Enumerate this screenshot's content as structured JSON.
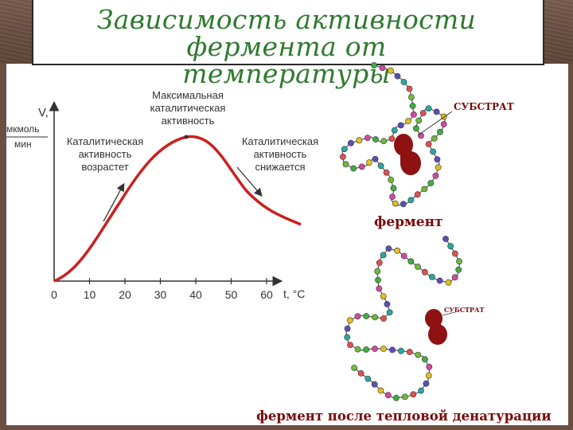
{
  "slide": {
    "title_line1": "Зависимость активности фермента от",
    "title_line2": "температуры"
  },
  "graph": {
    "y_axis_letter": "V,",
    "y_unit_numerator": "мкмоль",
    "y_unit_denominator": "мин",
    "x_axis_label": "t, °C",
    "x_ticks": [
      "0",
      "10",
      "20",
      "30",
      "40",
      "50",
      "60"
    ],
    "annotation_rise": [
      "Каталитическая",
      "активность",
      "возрастет"
    ],
    "annotation_peak": [
      "Максимальная",
      "каталитическая",
      "активность"
    ],
    "annotation_fall": [
      "Каталитическая",
      "активность",
      "снижается"
    ],
    "curve_color": "#cc1f1f"
  },
  "molecules": {
    "substrate_label_top": "СУБСТРАТ",
    "substrate_label_bottom": "СУБСТРАТ",
    "enzyme_label": "фермент",
    "denatured_label": "фермент после тепловой денатурации",
    "bead_colors": [
      "#3fae3f",
      "#d24a9e",
      "#e0c020",
      "#5a4fb8",
      "#2aa7a0",
      "#e05050",
      "#6dbb3a"
    ],
    "substrate_color": "#8e1212"
  }
}
